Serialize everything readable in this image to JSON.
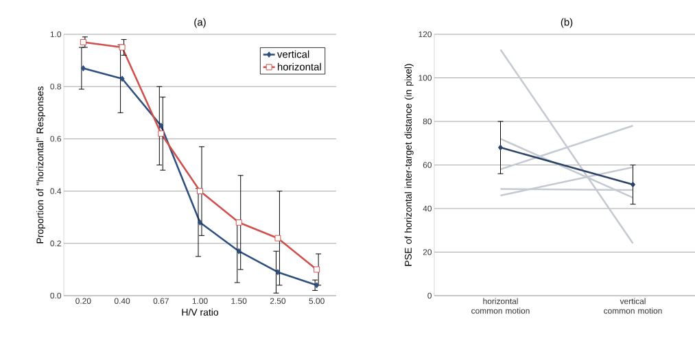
{
  "chart_data": [
    {
      "type": "line",
      "title": "(a)",
      "xlabel": "H/V ratio",
      "ylabel": "Proportion of \"horizontal\" Responses",
      "categories": [
        "0.20",
        "0.40",
        "0.67",
        "1.00",
        "1.50",
        "2.50",
        "5.00"
      ],
      "ylim": [
        0,
        1
      ],
      "yticks": [
        {
          "value": 0,
          "label": "0.0"
        },
        0.2,
        0.4,
        0.6,
        0.8,
        {
          "value": 1,
          "label": "1.0"
        }
      ],
      "grid": "y",
      "legend": "top right",
      "series": [
        {
          "name": "vertical",
          "color": "#2f4f80",
          "marker": "diamond",
          "values": [
            0.87,
            0.83,
            0.65,
            0.28,
            0.17,
            0.09,
            0.04
          ],
          "errors": [
            0.08,
            0.13,
            0.15,
            0.13,
            0.12,
            0.08,
            0.02
          ]
        },
        {
          "name": "horizontal",
          "color": "#d0504d",
          "marker": "square",
          "values": [
            0.97,
            0.95,
            0.62,
            0.4,
            0.28,
            0.22,
            0.1
          ],
          "errors": [
            0.02,
            0.03,
            0.14,
            0.17,
            0.18,
            0.18,
            0.06
          ]
        }
      ]
    },
    {
      "type": "line",
      "title": "(b)",
      "ylabel": "PSE of horizontal inter-target distance (in pixel)",
      "categories": [
        "horizontal common motion",
        "vertical common motion"
      ],
      "ylim": [
        0,
        120
      ],
      "yticks": [
        0,
        20,
        40,
        60,
        80,
        100,
        120
      ],
      "grid": "y",
      "marker": "none",
      "series": [
        {
          "color": "#c5cad2",
          "values": [
            113,
            24
          ]
        },
        {
          "color": "#c5cad2",
          "values": [
            58,
            78
          ]
        },
        {
          "color": "#c5cad2",
          "values": [
            72,
            45
          ]
        },
        {
          "color": "#c5cad2",
          "values": [
            49,
            48.5
          ]
        },
        {
          "color": "#c5cad2",
          "values": [
            46,
            59
          ]
        },
        {
          "color": "#2c4266",
          "marker": "diamond",
          "values": [
            68,
            51
          ],
          "errors": [
            12,
            9
          ]
        }
      ]
    }
  ]
}
